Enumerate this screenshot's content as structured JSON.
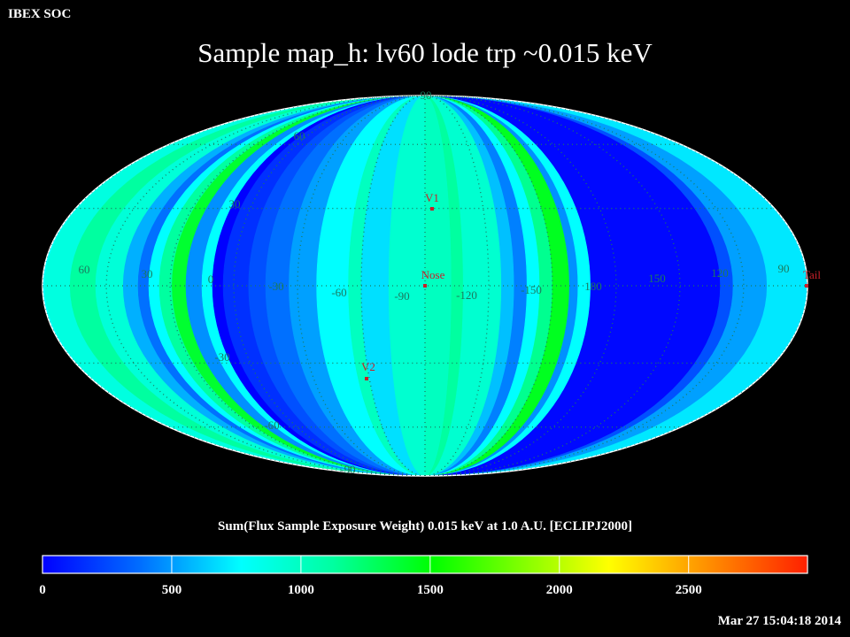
{
  "header": {
    "app": "IBEX SOC",
    "title": "Sample map_h: lv60 lode trp ~0.015 keV"
  },
  "map": {
    "projection": "Mollweide",
    "center_longitude": -90,
    "latitude_labels": [
      "90",
      "60",
      "30",
      "-30",
      "-60",
      "-90"
    ],
    "longitude_labels": [
      "60",
      "30",
      "0",
      "-30",
      "-60",
      "-90",
      "-120",
      "-150",
      "180",
      "150",
      "120",
      "90"
    ],
    "markers": [
      {
        "label": "V1"
      },
      {
        "label": "Nose"
      },
      {
        "label": "V2"
      },
      {
        "label": "Tail"
      }
    ],
    "marker_color": "#c8202a",
    "graticule_color": "#1b7a5e"
  },
  "colorbar": {
    "label": "Sum(Flux Sample Exposure Weight)  0.015 keV at 1.0 A.U. [ECLIPJ2000]",
    "ticks": [
      "0",
      "500",
      "1000",
      "1500",
      "2000",
      "2500"
    ],
    "range": [
      0,
      2960
    ],
    "colors": [
      "#0000ff",
      "#00c0ff",
      "#00ffff",
      "#00ffa0",
      "#00ff00",
      "#ffff00",
      "#ff2000"
    ]
  },
  "timestamp": "Mar 27 15:04:18 2014"
}
